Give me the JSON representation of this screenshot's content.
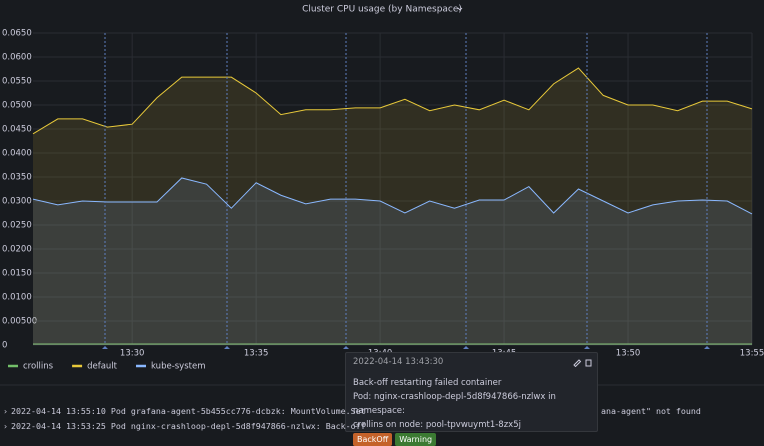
{
  "chart_data": {
    "type": "line",
    "title": "Cluster CPU usage (by Namespace)",
    "x": [
      "13:26",
      "13:27",
      "13:28",
      "13:29",
      "13:30",
      "13:31",
      "13:32",
      "13:33",
      "13:34",
      "13:35",
      "13:36",
      "13:37",
      "13:38",
      "13:39",
      "13:40",
      "13:41",
      "13:42",
      "13:43",
      "13:44",
      "13:45",
      "13:46",
      "13:47",
      "13:48",
      "13:49",
      "13:50",
      "13:51",
      "13:52",
      "13:53",
      "13:54",
      "13:55"
    ],
    "series": [
      {
        "name": "crollins",
        "color": "#73bf69",
        "values": [
          0.0002,
          0.0002,
          0.0002,
          0.0002,
          0.0002,
          0.0002,
          0.0002,
          0.0002,
          0.0002,
          0.0002,
          0.0002,
          0.0002,
          0.0002,
          0.0002,
          0.0002,
          0.0002,
          0.0002,
          0.0002,
          0.0002,
          0.0002,
          0.0002,
          0.0002,
          0.0002,
          0.0002,
          0.0002,
          0.0002,
          0.0002,
          0.0002,
          0.0002,
          0.0002
        ]
      },
      {
        "name": "default",
        "color": "#e8c93a",
        "values": [
          0.044,
          0.0471,
          0.0471,
          0.0454,
          0.046,
          0.0515,
          0.0558,
          0.0558,
          0.0558,
          0.0525,
          0.048,
          0.049,
          0.049,
          0.0494,
          0.0494,
          0.0512,
          0.0488,
          0.05,
          0.049,
          0.051,
          0.049,
          0.0544,
          0.0577,
          0.052,
          0.05,
          0.05,
          0.0488,
          0.0508,
          0.0508,
          0.0492
        ]
      },
      {
        "name": "kube-system",
        "color": "#8ab8ff",
        "values": [
          0.0304,
          0.0292,
          0.03,
          0.0298,
          0.0298,
          0.0298,
          0.0348,
          0.0335,
          0.0285,
          0.0338,
          0.0312,
          0.0294,
          0.0304,
          0.0304,
          0.03,
          0.0275,
          0.03,
          0.0285,
          0.0302,
          0.0302,
          0.033,
          0.0275,
          0.0325,
          0.03,
          0.0275,
          0.0292,
          0.03,
          0.0302,
          0.03,
          0.0273
        ]
      }
    ],
    "xlim": [
      "13:26",
      "13:55"
    ],
    "xticks": [
      "13:30",
      "13:35",
      "13:40",
      "13:45",
      "13:50",
      "13:55"
    ],
    "ylim": [
      0,
      0.065
    ],
    "yticks": [
      0,
      {
        "value": 0.005,
        "label": "0.00500"
      },
      {
        "value": 0.01,
        "label": "0.0100"
      },
      {
        "value": 0.015,
        "label": "0.0150"
      },
      {
        "value": 0.02,
        "label": "0.0200"
      },
      {
        "value": 0.025,
        "label": "0.0250"
      },
      {
        "value": 0.03,
        "label": "0.0300"
      },
      {
        "value": 0.035,
        "label": "0.0350"
      },
      {
        "value": 0.04,
        "label": "0.0400"
      },
      {
        "value": 0.045,
        "label": "0.0450"
      },
      {
        "value": 0.05,
        "label": "0.0500"
      },
      {
        "value": 0.055,
        "label": "0.0550"
      },
      {
        "value": 0.06,
        "label": "0.0600"
      },
      {
        "value": 0.065,
        "label": "0.0650"
      }
    ],
    "grid": true,
    "fill": true,
    "legend": "bottom-left"
  },
  "tooltip": {
    "time": "2022-04-14 13:43:30",
    "lines": [
      "Back-off restarting failed container",
      "Pod: nginx-crashloop-depl-5d8f947866-nzlwx in namespace:",
      "crollins on node: pool-tpvwuymt1-8zx5j"
    ],
    "tags": [
      "BackOff",
      "Warning"
    ]
  },
  "logs": [
    {
      "left": "2022-04-14 13:55:10 Pod grafana-agent-5b455cc776-dcbzk: MountVolume.Set",
      "right": "ana-agent\" not found"
    },
    {
      "left": "2022-04-14 13:53:25 Pod nginx-crashloop-depl-5d8f947866-nzlwx: Back-off",
      "right": ""
    }
  ]
}
